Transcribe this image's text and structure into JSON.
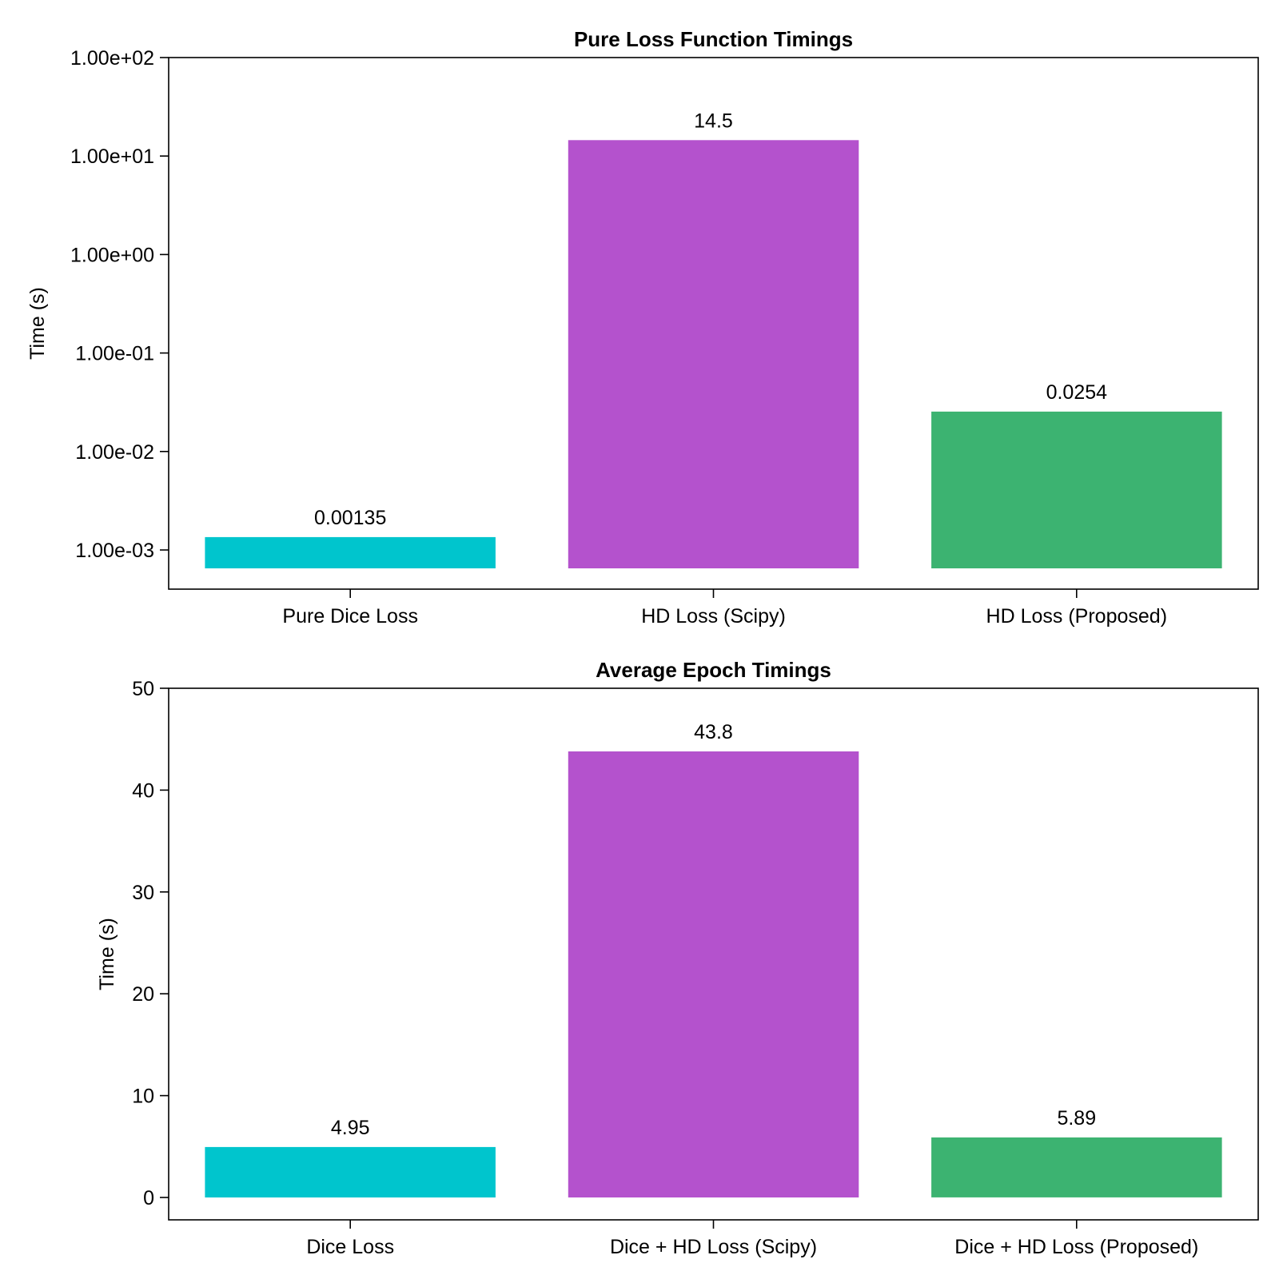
{
  "chart_data": [
    {
      "type": "bar",
      "title": "Pure Loss Function Timings",
      "ylabel": "Time (s)",
      "xlabel": "",
      "yscale": "log",
      "ylim": [
        0.0004,
        100
      ],
      "bar_base": 0.00065,
      "yticks": [
        0.001,
        0.01,
        0.1,
        1,
        10,
        100
      ],
      "ytick_labels": [
        "1.00e-03",
        "1.00e-02",
        "1.00e-01",
        "1.00e+00",
        "1.00e+01",
        "1.00e+02"
      ],
      "categories": [
        "Pure Dice Loss",
        "HD Loss (Scipy)",
        "HD Loss (Proposed)"
      ],
      "values": [
        0.00135,
        14.5,
        0.0254
      ],
      "value_labels": [
        "0.00135",
        "14.5",
        "0.0254"
      ],
      "colors": [
        "#00c5cd",
        "#b452cd",
        "#3cb371"
      ],
      "grid": false,
      "legend": false
    },
    {
      "type": "bar",
      "title": "Average Epoch Timings",
      "ylabel": "Time (s)",
      "xlabel": "",
      "yscale": "linear",
      "ylim": [
        -2.2,
        50
      ],
      "bar_base": 0,
      "yticks": [
        0,
        10,
        20,
        30,
        40,
        50
      ],
      "ytick_labels": [
        "0",
        "10",
        "20",
        "30",
        "40",
        "50"
      ],
      "categories": [
        "Dice Loss",
        "Dice + HD Loss (Scipy)",
        "Dice + HD Loss (Proposed)"
      ],
      "values": [
        4.95,
        43.8,
        5.89
      ],
      "value_labels": [
        "4.95",
        "43.8",
        "5.89"
      ],
      "colors": [
        "#00c5cd",
        "#b452cd",
        "#3cb371"
      ],
      "grid": false,
      "legend": false
    }
  ]
}
